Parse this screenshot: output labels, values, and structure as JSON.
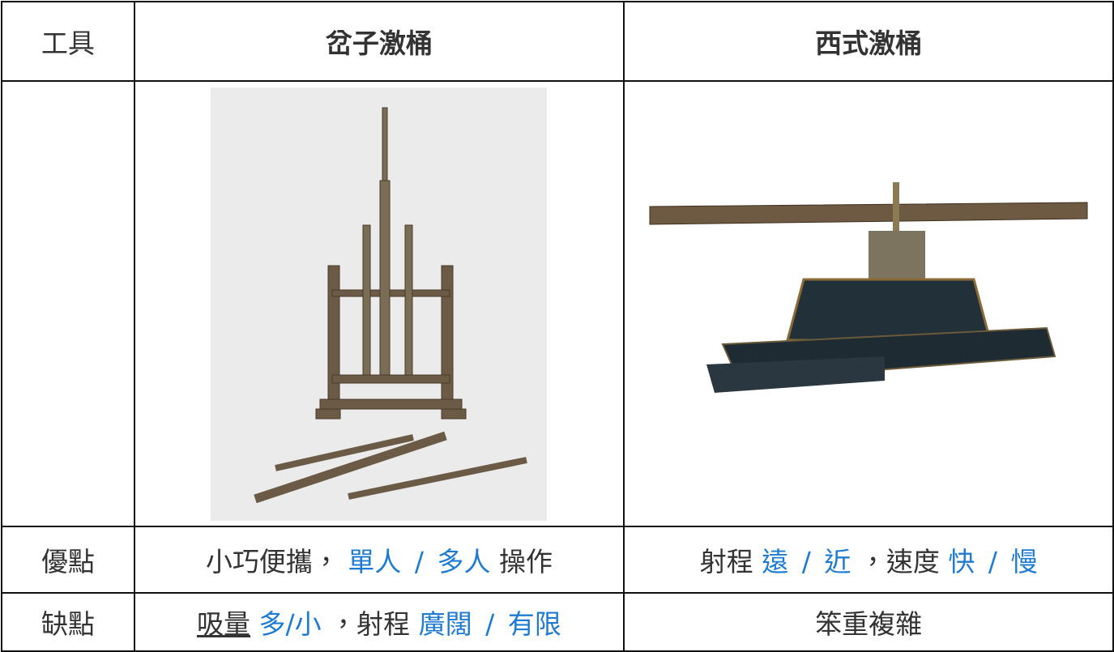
{
  "table": {
    "rows": [
      [
        "工具",
        "岔子激桶",
        "西式激桶"
      ],
      [
        "",
        "",
        ""
      ],
      [
        "優點",
        [
          "小巧便攜，",
          "單人",
          "/",
          "多人",
          "操作"
        ],
        [
          "射程",
          "遠",
          "/",
          "近",
          "，速度",
          "快",
          "/",
          "慢"
        ]
      ],
      [
        "缺點",
        [
          "吸量",
          "多/小",
          "，射程",
          "廣闊",
          "/",
          "有限"
        ],
        "笨重複雜"
      ]
    ]
  }
}
